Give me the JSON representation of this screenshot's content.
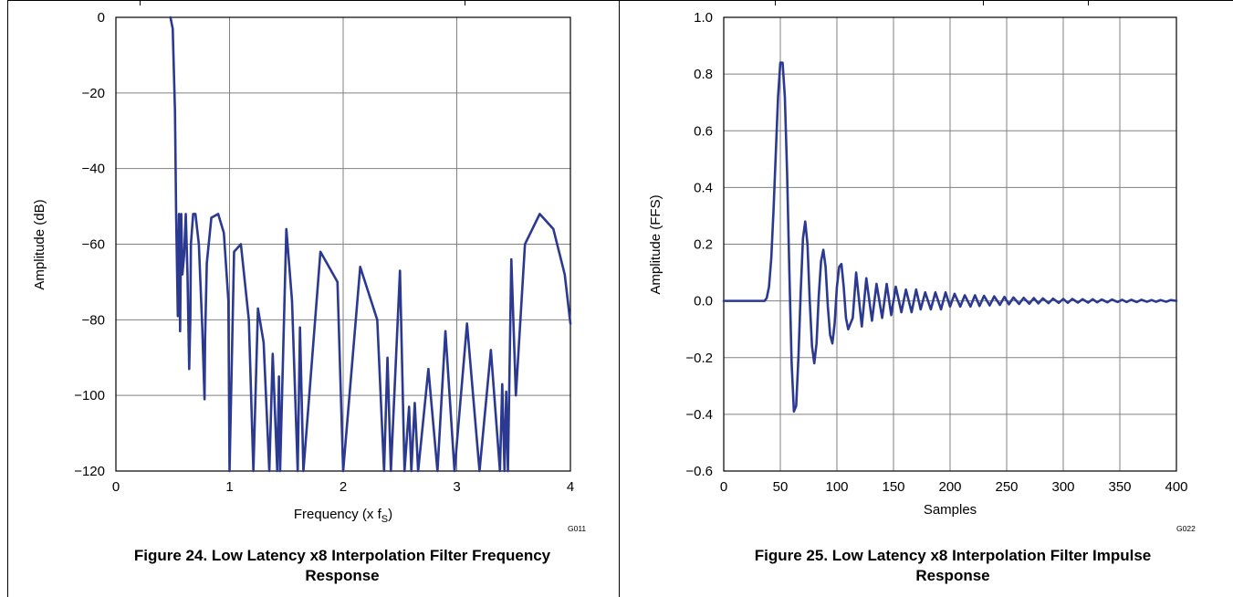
{
  "figures": [
    {
      "caption_line1": "Figure 24. Low Latency x8 Interpolation Filter Frequency",
      "caption_line2": "Response",
      "code": "G011"
    },
    {
      "caption_line1": "Figure 25. Low Latency x8 Interpolation Filter Impulse",
      "caption_line2": "Response",
      "code": "G022"
    }
  ],
  "chart_data": [
    {
      "type": "line",
      "xlabel": "Frequency (x f",
      "xlabel_sub": "S",
      "xlabel_close": ")",
      "ylabel": "Amplitude (dB)",
      "xlim": [
        0,
        4
      ],
      "ylim": [
        -120,
        0
      ],
      "xticks": [
        0,
        1,
        2,
        3,
        4
      ],
      "yticks": [
        0,
        -20,
        -40,
        -60,
        -80,
        -100,
        -120
      ],
      "xtick_labels": [
        "0",
        "1",
        "2",
        "3",
        "4"
      ],
      "ytick_labels": [
        "0",
        "−20",
        "−40",
        "−60",
        "−80",
        "−100",
        "−120"
      ],
      "grid": true,
      "color": "#2b3990",
      "series": [
        {
          "x": [
            0.48,
            0.5,
            0.52,
            0.53,
            0.545,
            0.555,
            0.565,
            0.575,
            0.585,
            0.6,
            0.615,
            0.63,
            0.645,
            0.655,
            0.66,
            0.68,
            0.7,
            0.73,
            0.76,
            0.78,
            0.785,
            0.8,
            0.84,
            0.9,
            0.95,
            0.99,
            1.0,
            1.0,
            1.04,
            1.1,
            1.17,
            1.21,
            1.21,
            1.25,
            1.3,
            1.35,
            1.35,
            1.38,
            1.42,
            1.42,
            1.435,
            1.445,
            1.445,
            1.5,
            1.55,
            1.6,
            1.6,
            1.62,
            1.65,
            1.65,
            1.8,
            1.95,
            2.0,
            2.0,
            2.15,
            2.3,
            2.36,
            2.36,
            2.39,
            2.42,
            2.42,
            2.5,
            2.54,
            2.54,
            2.58,
            2.6,
            2.6,
            2.63,
            2.66,
            2.66,
            2.75,
            2.83,
            2.83,
            2.9,
            2.98,
            2.98,
            3.09,
            3.2,
            3.2,
            3.3,
            3.38,
            3.38,
            3.4,
            3.42,
            3.42,
            3.435,
            3.45,
            3.45,
            3.48,
            3.52,
            3.52,
            3.6,
            3.73,
            3.85,
            3.95,
            4.0
          ],
          "y": [
            0,
            -3,
            -25,
            -52,
            -79,
            -52,
            -83,
            -52,
            -68,
            -63,
            -52,
            -68,
            -93,
            -80,
            -60,
            -52,
            -52,
            -60,
            -82,
            -101,
            -85,
            -65,
            -53,
            -52,
            -57,
            -75,
            -120,
            -120,
            -62,
            -60,
            -80,
            -120,
            -120,
            -77,
            -86,
            -120,
            -120,
            -89,
            -120,
            -120,
            -95,
            -120,
            -120,
            -56,
            -75,
            -120,
            -120,
            -82,
            -120,
            -120,
            -62,
            -70,
            -120,
            -120,
            -66,
            -80,
            -120,
            -120,
            -90,
            -120,
            -120,
            -67,
            -120,
            -120,
            -103,
            -120,
            -120,
            -102,
            -120,
            -120,
            -93,
            -120,
            -120,
            -83,
            -120,
            -120,
            -81,
            -120,
            -120,
            -88,
            -120,
            -120,
            -97,
            -120,
            -120,
            -99,
            -120,
            -120,
            -64,
            -100,
            -100,
            -60,
            -52,
            -56,
            -68,
            -81
          ]
        }
      ]
    },
    {
      "type": "line",
      "xlabel": "Samples",
      "ylabel": "Amplitude (FFS)",
      "xlim": [
        0,
        400
      ],
      "ylim": [
        -0.6,
        1.0
      ],
      "xticks": [
        0,
        50,
        100,
        150,
        200,
        250,
        300,
        350,
        400
      ],
      "yticks": [
        1.0,
        0.8,
        0.6,
        0.4,
        0.2,
        0.0,
        -0.2,
        -0.4,
        -0.6
      ],
      "xtick_labels": [
        "0",
        "50",
        "100",
        "150",
        "200",
        "250",
        "300",
        "350",
        "400"
      ],
      "ytick_labels": [
        "1.0",
        "0.8",
        "0.6",
        "0.4",
        "0.2",
        "0.0",
        "−0.2",
        "−0.4",
        "−0.6"
      ],
      "grid": true,
      "color": "#2b3990",
      "series": [
        {
          "x": [
            0,
            36,
            38,
            40,
            42,
            44,
            46,
            48,
            50,
            52,
            54,
            56,
            58,
            60,
            62,
            64,
            66,
            68,
            70,
            72,
            74,
            76,
            78,
            80,
            82,
            84,
            86,
            88,
            90,
            92,
            94,
            96,
            98,
            100,
            102,
            104,
            106,
            108,
            110,
            114,
            117,
            122,
            126,
            131,
            135,
            140,
            144,
            148,
            152,
            157,
            161,
            166,
            170,
            174,
            178,
            183,
            187,
            192,
            196,
            200,
            204,
            209,
            213,
            218,
            222,
            226,
            230,
            235,
            239,
            244,
            248,
            252,
            256,
            261,
            265,
            270,
            274,
            278,
            282,
            287,
            291,
            296,
            300,
            304,
            308,
            313,
            317,
            322,
            326,
            330,
            334,
            339,
            343,
            348,
            352,
            356,
            360,
            365,
            369,
            374,
            378,
            382,
            386,
            391,
            395,
            400
          ],
          "y": [
            0,
            0,
            0.01,
            0.05,
            0.15,
            0.32,
            0.52,
            0.72,
            0.84,
            0.84,
            0.72,
            0.45,
            0.1,
            -0.22,
            -0.39,
            -0.37,
            -0.2,
            0.03,
            0.22,
            0.28,
            0.2,
            0.0,
            -0.16,
            -0.22,
            -0.15,
            0.02,
            0.14,
            0.18,
            0.12,
            -0.02,
            -0.12,
            -0.15,
            -0.08,
            0.05,
            0.12,
            0.13,
            0.05,
            -0.06,
            -0.1,
            -0.06,
            0.1,
            -0.09,
            0.08,
            -0.07,
            0.06,
            -0.06,
            0.06,
            -0.05,
            0.05,
            -0.04,
            0.04,
            -0.04,
            0.04,
            -0.03,
            0.03,
            -0.03,
            0.03,
            -0.03,
            0.03,
            -0.02,
            0.025,
            -0.02,
            0.02,
            -0.02,
            0.02,
            -0.018,
            0.018,
            -0.016,
            0.016,
            -0.014,
            0.014,
            -0.012,
            0.012,
            -0.011,
            0.011,
            -0.01,
            0.01,
            -0.009,
            0.009,
            -0.008,
            0.008,
            -0.007,
            0.007,
            -0.007,
            0.007,
            -0.006,
            0.006,
            -0.006,
            0.006,
            -0.005,
            0.005,
            -0.005,
            0.005,
            -0.004,
            0.004,
            -0.004,
            0.004,
            -0.004,
            0.004,
            -0.003,
            0.003,
            -0.003,
            0.003,
            -0.003,
            0.003,
            0.0
          ]
        }
      ]
    }
  ]
}
